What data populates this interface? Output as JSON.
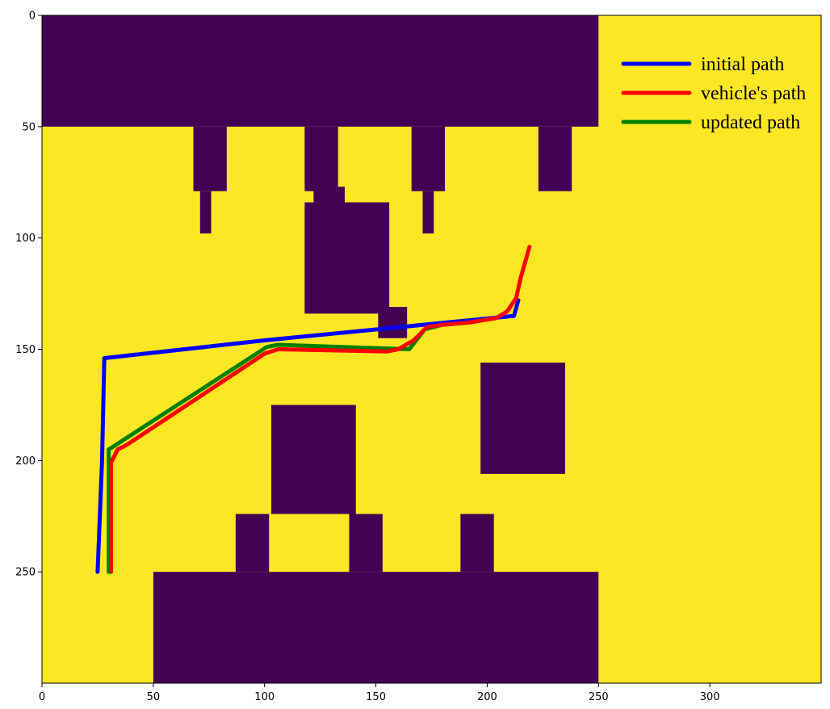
{
  "chart_data": {
    "type": "heatmap",
    "title": "",
    "xlabel": "",
    "ylabel": "",
    "xlim": [
      0,
      350
    ],
    "ylim": [
      300,
      0
    ],
    "x_ticks": [
      0,
      50,
      100,
      150,
      200,
      250,
      300
    ],
    "y_ticks": [
      0,
      50,
      100,
      150,
      200,
      250
    ],
    "grid": false,
    "legend_position": "top-right",
    "colors": {
      "free": "#fde725",
      "obstacle": "#440154",
      "initial_path": "#0000ff",
      "vehicle_path": "#ff0000",
      "updated_path": "#008000"
    },
    "obstacles": [
      {
        "x": [
          0,
          250
        ],
        "y": [
          0,
          50
        ]
      },
      {
        "x": [
          68,
          83
        ],
        "y": [
          50,
          79
        ]
      },
      {
        "x": [
          71,
          76
        ],
        "y": [
          79,
          98
        ]
      },
      {
        "x": [
          118,
          133
        ],
        "y": [
          50,
          79
        ]
      },
      {
        "x": [
          122,
          136
        ],
        "y": [
          77,
          84
        ]
      },
      {
        "x": [
          118,
          156
        ],
        "y": [
          84,
          134
        ]
      },
      {
        "x": [
          151,
          164
        ],
        "y": [
          131,
          145
        ]
      },
      {
        "x": [
          166,
          181
        ],
        "y": [
          50,
          79
        ]
      },
      {
        "x": [
          171,
          176
        ],
        "y": [
          79,
          98
        ]
      },
      {
        "x": [
          223,
          238
        ],
        "y": [
          50,
          79
        ]
      },
      {
        "x": [
          197,
          235
        ],
        "y": [
          156,
          206
        ]
      },
      {
        "x": [
          103,
          141
        ],
        "y": [
          175,
          224
        ]
      },
      {
        "x": [
          87,
          102
        ],
        "y": [
          224,
          250
        ]
      },
      {
        "x": [
          138,
          153
        ],
        "y": [
          224,
          250
        ]
      },
      {
        "x": [
          188,
          203
        ],
        "y": [
          224,
          250
        ]
      },
      {
        "x": [
          50,
          250
        ],
        "y": [
          250,
          300
        ]
      }
    ],
    "series": [
      {
        "name": "initial path",
        "x": [
          25,
          27,
          28,
          100,
          212,
          214
        ],
        "y": [
          250,
          200,
          154,
          146,
          135,
          128
        ],
        "color": "#0000ff"
      },
      {
        "name": "vehicle's path",
        "x": [
          31,
          31,
          31,
          34,
          38,
          100,
          106,
          155,
          160,
          167,
          173,
          180,
          192,
          204,
          209,
          213,
          215,
          219
        ],
        "y": [
          250,
          230,
          201,
          195,
          193,
          152,
          150,
          151,
          150,
          146,
          140,
          139,
          138,
          136,
          133,
          127,
          118,
          104
        ],
        "color": "#ff0000"
      },
      {
        "name": "updated path",
        "x": [
          30,
          30,
          101,
          106,
          165,
          172,
          180
        ],
        "y": [
          250,
          195,
          149,
          148,
          150,
          141,
          139
        ],
        "color": "#008000"
      }
    ]
  }
}
